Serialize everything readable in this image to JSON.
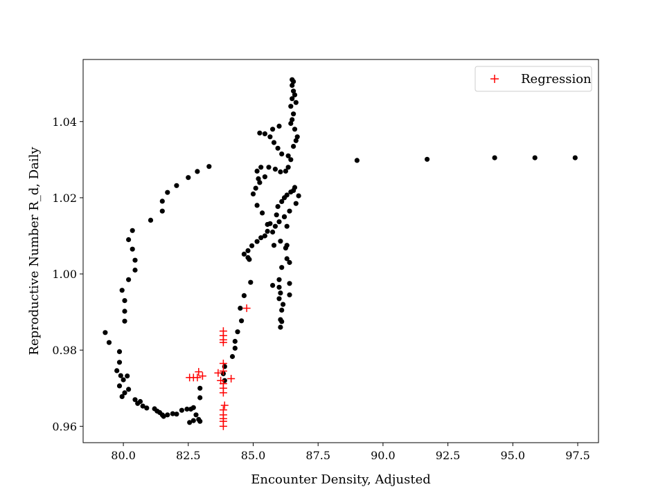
{
  "chart_data": {
    "type": "scatter",
    "title": "",
    "xlabel": "Encounter Density, Adjusted",
    "ylabel": "Reproductive Number R_d, Daily",
    "xlim": [
      78.45,
      98.3
    ],
    "ylim": [
      0.9557,
      1.0563
    ],
    "xticks": [
      80.0,
      82.5,
      85.0,
      87.5,
      90.0,
      92.5,
      95.0,
      97.5
    ],
    "xtick_labels": [
      "80.0",
      "82.5",
      "85.0",
      "87.5",
      "90.0",
      "92.5",
      "95.0",
      "97.5"
    ],
    "yticks": [
      0.96,
      0.98,
      1.0,
      1.02,
      1.04
    ],
    "ytick_labels": [
      "0.96",
      "0.98",
      "1.00",
      "1.02",
      "1.04"
    ],
    "grid": false,
    "legend": {
      "position": "top-right",
      "entries": [
        "Regression"
      ]
    },
    "series": [
      {
        "marker": "dot",
        "color": "#000000",
        "points": [
          [
            83.3,
            1.0282
          ],
          [
            82.85,
            1.0269
          ],
          [
            82.5,
            1.0253
          ],
          [
            82.05,
            1.0232
          ],
          [
            81.7,
            1.0214
          ],
          [
            81.5,
            1.0191
          ],
          [
            81.5,
            1.0165
          ],
          [
            81.05,
            1.0141
          ],
          [
            80.35,
            1.0114
          ],
          [
            80.2,
            1.009
          ],
          [
            80.35,
            1.0065
          ],
          [
            80.45,
            1.0036
          ],
          [
            80.45,
            1.001
          ],
          [
            80.2,
            0.9985
          ],
          [
            79.95,
            0.9957
          ],
          [
            80.05,
            0.993
          ],
          [
            80.05,
            0.9902
          ],
          [
            80.05,
            0.9876
          ],
          [
            79.3,
            0.9846
          ],
          [
            79.45,
            0.982
          ],
          [
            79.85,
            0.9796
          ],
          [
            79.85,
            0.9768
          ],
          [
            79.75,
            0.9746
          ],
          [
            79.9,
            0.9733
          ],
          [
            80.0,
            0.9722
          ],
          [
            80.15,
            0.9732
          ],
          [
            79.85,
            0.9706
          ],
          [
            80.05,
            0.9688
          ],
          [
            79.95,
            0.9678
          ],
          [
            80.2,
            0.9697
          ],
          [
            80.45,
            0.967
          ],
          [
            80.55,
            0.966
          ],
          [
            80.65,
            0.9665
          ],
          [
            80.75,
            0.9653
          ],
          [
            80.9,
            0.9648
          ],
          [
            81.2,
            0.9646
          ],
          [
            81.3,
            0.964
          ],
          [
            81.4,
            0.9636
          ],
          [
            81.5,
            0.963
          ],
          [
            81.55,
            0.9626
          ],
          [
            81.7,
            0.963
          ],
          [
            81.9,
            0.9633
          ],
          [
            82.05,
            0.9632
          ],
          [
            82.25,
            0.9642
          ],
          [
            82.45,
            0.9645
          ],
          [
            82.6,
            0.9645
          ],
          [
            82.7,
            0.9649
          ],
          [
            82.8,
            0.963
          ],
          [
            82.9,
            0.9618
          ],
          [
            82.7,
            0.9615
          ],
          [
            82.55,
            0.961
          ],
          [
            82.95,
            0.9613
          ],
          [
            82.95,
            0.9675
          ],
          [
            82.95,
            0.97
          ],
          [
            83.9,
            0.972
          ],
          [
            83.85,
            0.9738
          ],
          [
            83.9,
            0.9757
          ],
          [
            84.2,
            0.9783
          ],
          [
            84.3,
            0.9805
          ],
          [
            84.3,
            0.9823
          ],
          [
            84.4,
            0.9848
          ],
          [
            84.55,
            0.9877
          ],
          [
            84.5,
            0.991
          ],
          [
            84.65,
            0.9943
          ],
          [
            84.9,
            0.9978
          ],
          [
            84.85,
            1.0038
          ],
          [
            84.8,
            1.0043
          ],
          [
            84.65,
            1.0052
          ],
          [
            84.8,
            1.0061
          ],
          [
            84.95,
            1.0074
          ],
          [
            85.15,
            1.0085
          ],
          [
            85.3,
            1.0095
          ],
          [
            85.45,
            1.01
          ],
          [
            85.55,
            1.0112
          ],
          [
            85.65,
            1.0132
          ],
          [
            85.9,
            1.0155
          ],
          [
            85.95,
            1.0177
          ],
          [
            86.1,
            1.019
          ],
          [
            86.2,
            1.02
          ],
          [
            86.3,
            1.0207
          ],
          [
            86.45,
            1.0215
          ],
          [
            86.55,
            1.0219
          ],
          [
            86.6,
            1.0227
          ],
          [
            86.4,
            1.0165
          ],
          [
            86.2,
            1.015
          ],
          [
            86.0,
            1.0137
          ],
          [
            85.85,
            1.0125
          ],
          [
            85.75,
            1.011
          ],
          [
            86.05,
            1.0086
          ],
          [
            86.25,
            1.0068
          ],
          [
            86.3,
            1.004
          ],
          [
            86.1,
            1.0017
          ],
          [
            86.0,
            0.9985
          ],
          [
            86.0,
            0.9965
          ],
          [
            86.05,
            0.995
          ],
          [
            85.75,
            0.997
          ],
          [
            86.0,
            0.9935
          ],
          [
            86.15,
            0.992
          ],
          [
            86.1,
            0.9905
          ],
          [
            86.05,
            0.988
          ],
          [
            86.1,
            0.9875
          ],
          [
            86.05,
            0.986
          ],
          [
            86.4,
            0.9945
          ],
          [
            86.4,
            0.9975
          ],
          [
            86.4,
            1.003
          ],
          [
            86.3,
            1.0075
          ],
          [
            86.3,
            1.0125
          ],
          [
            86.2,
            1.015
          ],
          [
            85.8,
            1.0075
          ],
          [
            85.55,
            1.013
          ],
          [
            85.35,
            1.016
          ],
          [
            85.15,
            1.018
          ],
          [
            85.0,
            1.021
          ],
          [
            85.1,
            1.0225
          ],
          [
            85.25,
            1.024
          ],
          [
            85.2,
            1.025
          ],
          [
            85.45,
            1.0255
          ],
          [
            85.15,
            1.027
          ],
          [
            85.3,
            1.028
          ],
          [
            85.6,
            1.028
          ],
          [
            85.85,
            1.0275
          ],
          [
            86.05,
            1.0268
          ],
          [
            86.25,
            1.027
          ],
          [
            86.35,
            1.028
          ],
          [
            86.45,
            1.03
          ],
          [
            86.35,
            1.031
          ],
          [
            86.1,
            1.0315
          ],
          [
            85.95,
            1.033
          ],
          [
            85.8,
            1.0345
          ],
          [
            85.65,
            1.036
          ],
          [
            85.45,
            1.0368
          ],
          [
            85.25,
            1.037
          ],
          [
            85.75,
            1.038
          ],
          [
            86.0,
            1.0388
          ],
          [
            86.5,
            1.051
          ],
          [
            86.55,
            1.0505
          ],
          [
            86.5,
            1.0495
          ],
          [
            86.55,
            1.048
          ],
          [
            86.6,
            1.047
          ],
          [
            86.5,
            1.046
          ],
          [
            86.45,
            1.044
          ],
          [
            86.65,
            1.045
          ],
          [
            86.55,
            1.042
          ],
          [
            86.5,
            1.0405
          ],
          [
            86.45,
            1.0395
          ],
          [
            86.6,
            1.038
          ],
          [
            86.7,
            1.036
          ],
          [
            86.65,
            1.035
          ],
          [
            86.55,
            1.0335
          ],
          [
            86.75,
            1.0205
          ],
          [
            86.65,
            1.0185
          ],
          [
            89.0,
            1.0298
          ],
          [
            91.7,
            1.0301
          ],
          [
            94.3,
            1.0305
          ],
          [
            95.85,
            1.0305
          ],
          [
            97.4,
            1.0305
          ]
        ]
      },
      {
        "name": "Regression",
        "marker": "plus",
        "color": "#ff0000",
        "points": [
          [
            84.75,
            0.991
          ],
          [
            83.85,
            0.985
          ],
          [
            83.85,
            0.9838
          ],
          [
            83.85,
            0.9827
          ],
          [
            83.85,
            0.982
          ],
          [
            83.85,
            0.9765
          ],
          [
            83.85,
            0.9745
          ],
          [
            83.75,
            0.972
          ],
          [
            83.85,
            0.9712
          ],
          [
            83.85,
            0.97
          ],
          [
            83.85,
            0.9688
          ],
          [
            83.9,
            0.9655
          ],
          [
            83.85,
            0.9643
          ],
          [
            83.85,
            0.963
          ],
          [
            83.85,
            0.962
          ],
          [
            83.85,
            0.9613
          ],
          [
            83.85,
            0.96
          ],
          [
            83.65,
            0.974
          ],
          [
            84.15,
            0.9725
          ],
          [
            82.55,
            0.9728
          ],
          [
            82.7,
            0.9728
          ],
          [
            82.85,
            0.9728
          ],
          [
            82.9,
            0.9743
          ],
          [
            83.05,
            0.9732
          ]
        ]
      }
    ]
  }
}
